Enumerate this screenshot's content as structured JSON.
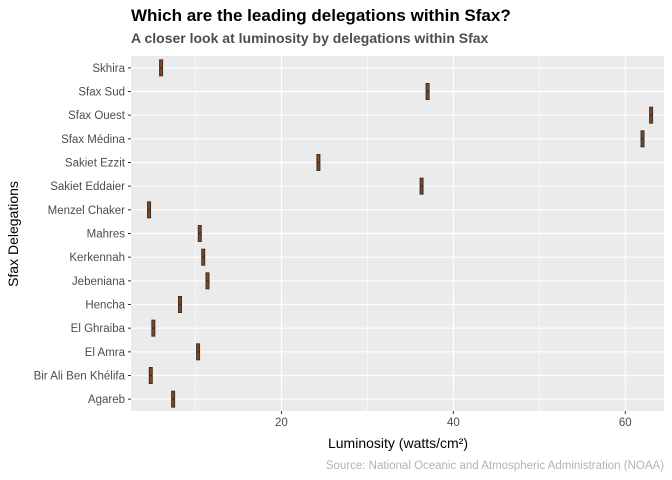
{
  "chart_data": {
    "type": "boxplot",
    "title": "Which are the leading delegations within Sfax?",
    "subtitle": "A closer look at luminosity by delegations within Sfax",
    "xlabel": "Luminosity (watts/cm²)",
    "ylabel": "Sfax Delegations",
    "caption": "Source: National Oceanic and Atmospheric Administration (NOAA)",
    "xlim": [
      2.5,
      64.5
    ],
    "x_ticks": [
      20,
      40,
      60
    ],
    "grid": true,
    "legend": "none",
    "box_fill": "#8b4513",
    "box_outline": "#333333",
    "panel_background": "#ebebeb",
    "categories": [
      "Skhira",
      "Sfax Sud",
      "Sfax Ouest",
      "Sfax Médina",
      "Sakiet Ezzit",
      "Sakiet Eddaier",
      "Menzel Chaker",
      "Mahres",
      "Kerkennah",
      "Jebeniana",
      "Hencha",
      "El Ghraiba",
      "El Amra",
      "Bir Ali Ben Khélifa",
      "Agareb"
    ],
    "values": [
      6.0,
      37.0,
      63.0,
      62.0,
      24.3,
      36.3,
      4.6,
      10.5,
      10.9,
      11.4,
      8.2,
      5.1,
      10.3,
      4.8,
      7.4
    ]
  }
}
